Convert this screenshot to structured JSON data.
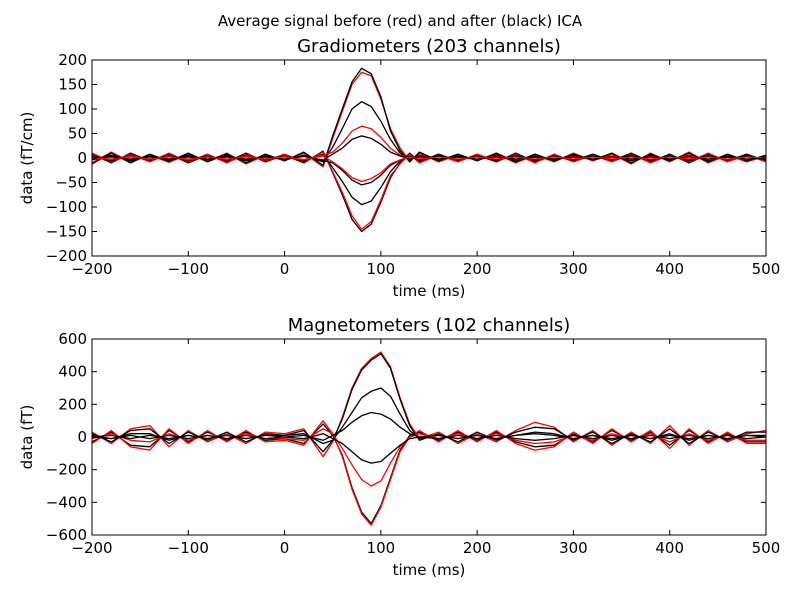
{
  "figure": {
    "suptitle": "Average signal before (red) and after (black) ICA"
  },
  "colors": {
    "before": "#ff0000",
    "after": "#000000",
    "axes": "#000000",
    "background": "#ffffff"
  },
  "chart_data": [
    {
      "type": "line",
      "title": "Gradiometers (203 channels)",
      "xlabel": "time (ms)",
      "ylabel": "data (fT/cm)",
      "xlim": [
        -200,
        500
      ],
      "ylim": [
        -200,
        200
      ],
      "xticks": [
        -200,
        -100,
        0,
        100,
        200,
        300,
        400,
        500
      ],
      "yticks": [
        -200,
        -150,
        -100,
        -50,
        0,
        50,
        100,
        150,
        200
      ],
      "xtick_labels": [
        "−200",
        "−100",
        "0",
        "100",
        "200",
        "300",
        "400",
        "500"
      ],
      "ytick_labels": [
        "−200",
        "−150",
        "−100",
        "−50",
        "0",
        "50",
        "100",
        "150",
        "200"
      ],
      "grid": false,
      "x": [
        -200,
        -180,
        -160,
        -140,
        -120,
        -100,
        -80,
        -60,
        -40,
        -20,
        0,
        20,
        40,
        50,
        60,
        70,
        80,
        90,
        100,
        110,
        120,
        130,
        140,
        160,
        180,
        200,
        220,
        240,
        260,
        280,
        300,
        320,
        340,
        360,
        380,
        400,
        420,
        440,
        460,
        480,
        500
      ],
      "series": [
        {
          "color_key": "before",
          "values": [
            -10,
            12,
            -8,
            6,
            -9,
            8,
            -6,
            10,
            -12,
            6,
            -4,
            10,
            -18,
            40,
            95,
            150,
            175,
            168,
            120,
            60,
            20,
            -6,
            10,
            -8,
            6,
            -4,
            8,
            -10,
            6,
            -8,
            10,
            -6,
            8,
            -12,
            10,
            -8,
            12,
            -10,
            6,
            -8,
            4
          ]
        },
        {
          "color_key": "after",
          "values": [
            -12,
            10,
            -10,
            8,
            -7,
            10,
            -8,
            8,
            -10,
            8,
            -6,
            12,
            -15,
            45,
            100,
            155,
            183,
            172,
            125,
            55,
            15,
            -8,
            12,
            -6,
            8,
            -6,
            10,
            -8,
            8,
            -6,
            8,
            -4,
            10,
            -10,
            8,
            -6,
            10,
            -8,
            8,
            -6,
            6
          ]
        },
        {
          "color_key": "after",
          "values": [
            8,
            -10,
            10,
            -6,
            8,
            -10,
            6,
            -8,
            10,
            -8,
            6,
            -10,
            14,
            -30,
            -75,
            -125,
            -150,
            -135,
            -90,
            -40,
            -10,
            10,
            -8,
            8,
            -6,
            6,
            -8,
            10,
            -8,
            6,
            -6,
            8,
            -6,
            10,
            -8,
            8,
            -10,
            8,
            -6,
            8,
            -6
          ]
        },
        {
          "color_key": "before",
          "values": [
            10,
            -8,
            8,
            -8,
            10,
            -8,
            8,
            -10,
            8,
            -6,
            8,
            -8,
            12,
            -28,
            -70,
            -118,
            -145,
            -130,
            -85,
            -36,
            -12,
            8,
            -10,
            6,
            -8,
            8,
            -6,
            8,
            -10,
            8,
            -8,
            6,
            -8,
            8,
            -10,
            6,
            -8,
            10,
            -8,
            6,
            -8
          ]
        },
        {
          "color_key": "after",
          "values": [
            -4,
            6,
            -6,
            4,
            -5,
            6,
            -4,
            6,
            -6,
            4,
            -4,
            6,
            -8,
            22,
            60,
            100,
            115,
            105,
            75,
            38,
            10,
            -4,
            6,
            -4,
            4,
            -4,
            6,
            -6,
            4,
            -4,
            6,
            -4,
            4,
            -6,
            6,
            -4,
            6,
            -6,
            4,
            -4,
            4
          ]
        },
        {
          "color_key": "after",
          "values": [
            5,
            -6,
            6,
            -5,
            6,
            -6,
            5,
            -6,
            6,
            -4,
            5,
            -6,
            8,
            -20,
            -48,
            -80,
            -95,
            -88,
            -60,
            -28,
            -6,
            4,
            -6,
            5,
            -4,
            4,
            -5,
            6,
            -6,
            4,
            -5,
            5,
            -4,
            6,
            -6,
            5,
            -6,
            6,
            -4,
            5,
            -4
          ]
        },
        {
          "color_key": "before",
          "values": [
            2,
            -3,
            4,
            -2,
            3,
            -4,
            2,
            -3,
            4,
            -2,
            3,
            -4,
            6,
            12,
            30,
            55,
            65,
            60,
            42,
            20,
            6,
            -2,
            3,
            -2,
            2,
            -3,
            4,
            -3,
            2,
            -2,
            3,
            -2,
            4,
            -3,
            3,
            -2,
            4,
            -3,
            2,
            -3,
            2
          ]
        },
        {
          "color_key": "after",
          "values": [
            -3,
            4,
            -3,
            3,
            -4,
            3,
            -3,
            4,
            -3,
            3,
            -3,
            4,
            -5,
            -10,
            -25,
            -45,
            -55,
            -50,
            -35,
            -15,
            -4,
            3,
            -3,
            3,
            -3,
            3,
            -4,
            3,
            -3,
            3,
            -3,
            3,
            -4,
            3,
            -3,
            3,
            -4,
            3,
            -3,
            3,
            -3
          ]
        },
        {
          "color_key": "after",
          "values": [
            0,
            2,
            -2,
            2,
            -2,
            2,
            -2,
            2,
            -2,
            2,
            -2,
            3,
            -4,
            8,
            20,
            38,
            45,
            40,
            28,
            12,
            4,
            -2,
            2,
            -2,
            2,
            -2,
            2,
            -2,
            2,
            -2,
            2,
            -2,
            2,
            -2,
            2,
            -2,
            2,
            -2,
            2,
            -2,
            0
          ]
        },
        {
          "color_key": "before",
          "values": [
            0,
            -2,
            2,
            -2,
            2,
            -2,
            2,
            -2,
            2,
            -2,
            2,
            -3,
            4,
            -8,
            -22,
            -40,
            -48,
            -42,
            -30,
            -12,
            -4,
            2,
            -2,
            2,
            -2,
            2,
            -2,
            2,
            -2,
            2,
            -2,
            2,
            -2,
            2,
            -2,
            2,
            -2,
            2,
            -2,
            2,
            0
          ]
        }
      ]
    },
    {
      "type": "line",
      "title": "Magnetometers (102 channels)",
      "xlabel": "time (ms)",
      "ylabel": "data (fT)",
      "xlim": [
        -200,
        500
      ],
      "ylim": [
        -600,
        600
      ],
      "xticks": [
        -200,
        -100,
        0,
        100,
        200,
        300,
        400,
        500
      ],
      "yticks": [
        -600,
        -400,
        -200,
        0,
        200,
        400,
        600
      ],
      "xtick_labels": [
        "−200",
        "−100",
        "0",
        "100",
        "200",
        "300",
        "400",
        "500"
      ],
      "ytick_labels": [
        "−600",
        "−400",
        "−200",
        "0",
        "200",
        "400",
        "600"
      ],
      "grid": false,
      "x": [
        -200,
        -180,
        -160,
        -140,
        -120,
        -100,
        -80,
        -60,
        -40,
        -20,
        0,
        20,
        40,
        50,
        60,
        70,
        80,
        90,
        100,
        110,
        120,
        130,
        140,
        160,
        180,
        200,
        220,
        240,
        260,
        280,
        300,
        320,
        340,
        360,
        380,
        400,
        420,
        440,
        460,
        480,
        500
      ],
      "series": [
        {
          "color_key": "before",
          "values": [
            30,
            -40,
            50,
            70,
            -60,
            40,
            -30,
            20,
            -40,
            30,
            20,
            50,
            -120,
            -30,
            120,
            300,
            420,
            480,
            520,
            430,
            240,
            80,
            -10,
            30,
            -40,
            20,
            -30,
            40,
            90,
            60,
            -30,
            40,
            -50,
            30,
            -40,
            70,
            -50,
            40,
            -30,
            20,
            40
          ]
        },
        {
          "color_key": "after",
          "values": [
            20,
            -30,
            40,
            50,
            -40,
            30,
            -20,
            30,
            -30,
            20,
            10,
            40,
            -90,
            -20,
            110,
            290,
            410,
            470,
            510,
            420,
            230,
            70,
            -20,
            20,
            -30,
            30,
            -20,
            30,
            60,
            50,
            -20,
            30,
            -40,
            20,
            -30,
            50,
            -40,
            30,
            -20,
            30,
            30
          ]
        },
        {
          "color_key": "after",
          "values": [
            -30,
            30,
            -50,
            -60,
            40,
            -30,
            30,
            -20,
            30,
            -20,
            -10,
            -40,
            80,
            10,
            -110,
            -310,
            -460,
            -530,
            -420,
            -250,
            -80,
            10,
            30,
            -20,
            30,
            -20,
            30,
            -30,
            -60,
            -50,
            20,
            -30,
            40,
            -20,
            30,
            -50,
            40,
            -30,
            20,
            -30,
            -30
          ]
        },
        {
          "color_key": "before",
          "values": [
            -40,
            40,
            -60,
            -80,
            50,
            -40,
            40,
            -30,
            40,
            -30,
            -20,
            -50,
            100,
            20,
            -120,
            -320,
            -470,
            -540,
            -430,
            -260,
            -90,
            0,
            40,
            -30,
            40,
            -30,
            40,
            -40,
            -80,
            -60,
            30,
            -40,
            50,
            -30,
            40,
            -70,
            50,
            -40,
            30,
            -40,
            -40
          ]
        },
        {
          "color_key": "after",
          "values": [
            10,
            -10,
            20,
            20,
            -20,
            10,
            -10,
            10,
            -10,
            10,
            10,
            20,
            -40,
            -20,
            60,
            150,
            240,
            280,
            300,
            250,
            140,
            40,
            -10,
            10,
            -10,
            10,
            -10,
            10,
            30,
            20,
            -10,
            10,
            -20,
            10,
            -10,
            20,
            -20,
            10,
            -10,
            10,
            10
          ]
        },
        {
          "color_key": "before",
          "values": [
            -10,
            20,
            -20,
            -30,
            20,
            -20,
            10,
            -10,
            20,
            -10,
            -10,
            -20,
            50,
            20,
            -70,
            -170,
            -260,
            -300,
            -270,
            -160,
            -60,
            0,
            20,
            -10,
            20,
            -10,
            20,
            -20,
            -40,
            -30,
            10,
            -20,
            20,
            -10,
            20,
            -30,
            20,
            -20,
            10,
            -20,
            -20
          ]
        },
        {
          "color_key": "after",
          "values": [
            0,
            10,
            -10,
            10,
            -10,
            10,
            -10,
            10,
            -10,
            10,
            0,
            10,
            -20,
            10,
            40,
            90,
            130,
            150,
            140,
            110,
            60,
            20,
            0,
            10,
            -10,
            10,
            -10,
            10,
            20,
            10,
            -10,
            10,
            -10,
            10,
            -10,
            10,
            -10,
            10,
            -10,
            10,
            0
          ]
        },
        {
          "color_key": "after",
          "values": [
            0,
            -10,
            10,
            -10,
            10,
            -10,
            10,
            -10,
            10,
            -10,
            0,
            -10,
            20,
            -10,
            -40,
            -90,
            -140,
            -160,
            -150,
            -100,
            -50,
            -10,
            0,
            -10,
            10,
            -10,
            10,
            -10,
            -20,
            -10,
            10,
            -10,
            10,
            -10,
            10,
            -10,
            10,
            -10,
            10,
            -10,
            0
          ]
        }
      ]
    }
  ]
}
